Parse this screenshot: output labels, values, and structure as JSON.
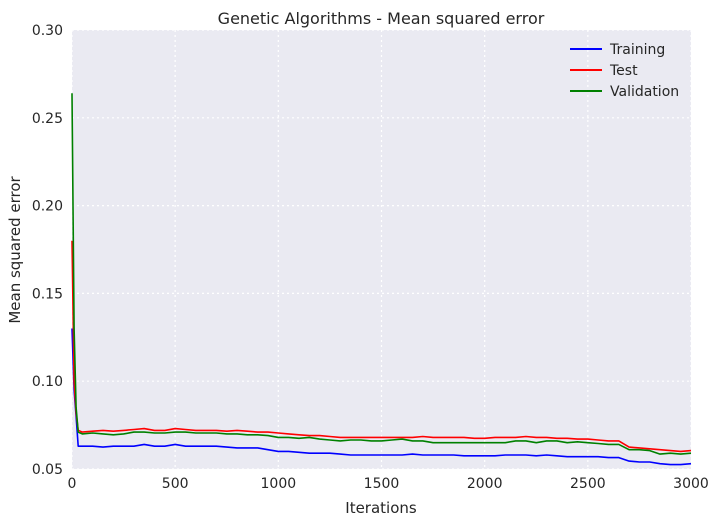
{
  "chart_data": {
    "type": "line",
    "title": "Genetic Algorithms - Mean squared error",
    "xlabel": "Iterations",
    "ylabel": "Mean squared error",
    "xlim": [
      0,
      3000
    ],
    "ylim": [
      0.05,
      0.3
    ],
    "xticks": [
      0,
      500,
      1000,
      1500,
      2000,
      2500,
      3000
    ],
    "xtick_labels": [
      "0",
      "500",
      "1000",
      "1500",
      "2000",
      "2500",
      "3000"
    ],
    "yticks": [
      0.05,
      0.1,
      0.15,
      0.2,
      0.25,
      0.3
    ],
    "ytick_labels": [
      "0.05",
      "0.10",
      "0.15",
      "0.20",
      "0.25",
      "0.30"
    ],
    "grid": true,
    "legend_position": "top-right",
    "series": [
      {
        "name": "Training",
        "color": "#0000ff",
        "x": [
          0,
          10,
          20,
          30,
          50,
          100,
          150,
          200,
          250,
          300,
          350,
          400,
          450,
          500,
          550,
          600,
          650,
          700,
          750,
          800,
          850,
          900,
          950,
          1000,
          1050,
          1100,
          1150,
          1200,
          1250,
          1300,
          1350,
          1400,
          1450,
          1500,
          1550,
          1600,
          1650,
          1700,
          1750,
          1800,
          1850,
          1900,
          1950,
          2000,
          2050,
          2100,
          2150,
          2200,
          2250,
          2300,
          2350,
          2400,
          2450,
          2500,
          2550,
          2600,
          2650,
          2700,
          2750,
          2800,
          2850,
          2900,
          2950,
          3000
        ],
        "y": [
          0.13,
          0.095,
          0.08,
          0.063,
          0.063,
          0.063,
          0.0625,
          0.063,
          0.063,
          0.063,
          0.064,
          0.063,
          0.063,
          0.064,
          0.063,
          0.063,
          0.063,
          0.063,
          0.0625,
          0.062,
          0.062,
          0.062,
          0.061,
          0.06,
          0.06,
          0.0595,
          0.059,
          0.059,
          0.059,
          0.0585,
          0.058,
          0.058,
          0.058,
          0.058,
          0.058,
          0.058,
          0.0585,
          0.058,
          0.058,
          0.058,
          0.058,
          0.0575,
          0.0575,
          0.0575,
          0.0575,
          0.058,
          0.058,
          0.058,
          0.0575,
          0.058,
          0.0575,
          0.057,
          0.057,
          0.057,
          0.057,
          0.0565,
          0.0565,
          0.0545,
          0.054,
          0.054,
          0.053,
          0.0525,
          0.0525,
          0.053
        ]
      },
      {
        "name": "Test",
        "color": "#ff0000",
        "x": [
          0,
          10,
          20,
          30,
          50,
          100,
          150,
          200,
          250,
          300,
          350,
          400,
          450,
          500,
          550,
          600,
          650,
          700,
          750,
          800,
          850,
          900,
          950,
          1000,
          1050,
          1100,
          1150,
          1200,
          1250,
          1300,
          1350,
          1400,
          1450,
          1500,
          1550,
          1600,
          1650,
          1700,
          1750,
          1800,
          1850,
          1900,
          1950,
          2000,
          2050,
          2100,
          2150,
          2200,
          2250,
          2300,
          2350,
          2400,
          2450,
          2500,
          2550,
          2600,
          2650,
          2700,
          2750,
          2800,
          2850,
          2900,
          2950,
          3000
        ],
        "y": [
          0.18,
          0.1,
          0.082,
          0.072,
          0.071,
          0.0715,
          0.072,
          0.0715,
          0.072,
          0.0725,
          0.073,
          0.072,
          0.072,
          0.073,
          0.0725,
          0.072,
          0.072,
          0.072,
          0.0715,
          0.072,
          0.0715,
          0.071,
          0.071,
          0.0705,
          0.07,
          0.0695,
          0.069,
          0.069,
          0.0685,
          0.068,
          0.068,
          0.068,
          0.068,
          0.068,
          0.068,
          0.068,
          0.068,
          0.0685,
          0.068,
          0.068,
          0.068,
          0.068,
          0.0675,
          0.0675,
          0.068,
          0.068,
          0.068,
          0.0685,
          0.068,
          0.068,
          0.0675,
          0.0675,
          0.067,
          0.067,
          0.0665,
          0.066,
          0.066,
          0.0625,
          0.062,
          0.0615,
          0.061,
          0.0605,
          0.06,
          0.0605
        ]
      },
      {
        "name": "Validation",
        "color": "#008000",
        "x": [
          0,
          10,
          20,
          30,
          50,
          100,
          150,
          200,
          250,
          300,
          350,
          400,
          450,
          500,
          550,
          600,
          650,
          700,
          750,
          800,
          850,
          900,
          950,
          1000,
          1050,
          1100,
          1150,
          1200,
          1250,
          1300,
          1350,
          1400,
          1450,
          1500,
          1550,
          1600,
          1650,
          1700,
          1750,
          1800,
          1850,
          1900,
          1950,
          2000,
          2050,
          2100,
          2150,
          2200,
          2250,
          2300,
          2350,
          2400,
          2450,
          2500,
          2550,
          2600,
          2650,
          2700,
          2750,
          2800,
          2850,
          2900,
          2950,
          3000
        ],
        "y": [
          0.264,
          0.13,
          0.085,
          0.071,
          0.07,
          0.0705,
          0.07,
          0.0695,
          0.07,
          0.071,
          0.071,
          0.0705,
          0.0705,
          0.071,
          0.071,
          0.0705,
          0.0705,
          0.0705,
          0.07,
          0.07,
          0.0695,
          0.0695,
          0.069,
          0.068,
          0.068,
          0.0675,
          0.068,
          0.067,
          0.0665,
          0.066,
          0.0665,
          0.0665,
          0.066,
          0.066,
          0.0665,
          0.067,
          0.066,
          0.066,
          0.065,
          0.065,
          0.065,
          0.065,
          0.065,
          0.065,
          0.065,
          0.065,
          0.066,
          0.066,
          0.065,
          0.066,
          0.066,
          0.065,
          0.0655,
          0.065,
          0.0645,
          0.064,
          0.064,
          0.061,
          0.061,
          0.0605,
          0.0585,
          0.059,
          0.0585,
          0.059
        ]
      }
    ]
  }
}
